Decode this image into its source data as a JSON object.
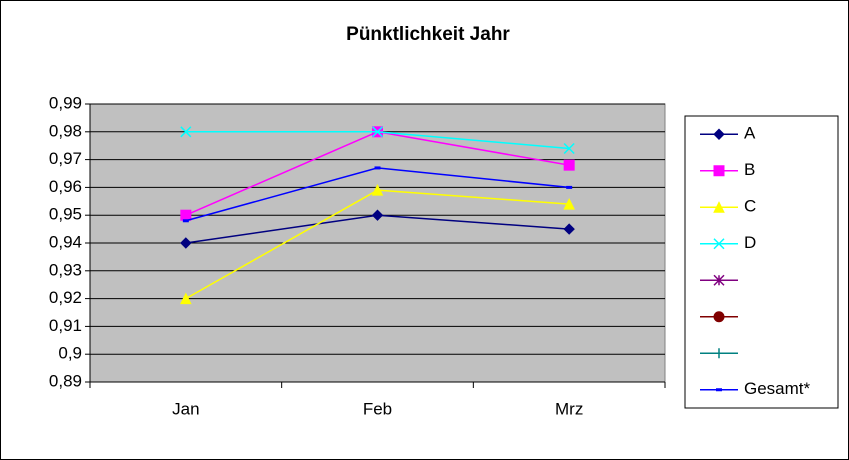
{
  "chart_data": {
    "type": "line",
    "title": "Pünktlichkeit Jahr",
    "categories": [
      "Jan",
      "Feb",
      "Mrz"
    ],
    "series": [
      {
        "name": "A",
        "color": "#000080",
        "marker": "diamond",
        "values": [
          0.94,
          0.95,
          0.945
        ]
      },
      {
        "name": "B",
        "color": "#FF00FF",
        "marker": "square",
        "values": [
          0.95,
          0.98,
          0.968
        ]
      },
      {
        "name": "C",
        "color": "#FFFF00",
        "marker": "triangle",
        "values": [
          0.92,
          0.959,
          0.954
        ]
      },
      {
        "name": "D",
        "color": "#00FFFF",
        "marker": "x",
        "values": [
          0.98,
          0.98,
          0.974
        ]
      },
      {
        "name": null,
        "color": "#800080",
        "marker": "asterisk",
        "values": [
          null,
          null,
          null
        ]
      },
      {
        "name": null,
        "color": "#800000",
        "marker": "circle",
        "values": [
          null,
          null,
          null
        ]
      },
      {
        "name": null,
        "color": "#008080",
        "marker": "plus",
        "values": [
          null,
          null,
          null
        ]
      },
      {
        "name": "Gesamt*",
        "color": "#0000FF",
        "marker": "dash",
        "values": [
          0.948,
          0.967,
          0.96
        ]
      }
    ],
    "ylim": [
      0.89,
      0.99
    ],
    "yticks": [
      {
        "value": 0.89,
        "label": "0,89"
      },
      {
        "value": 0.9,
        "label": "0,9"
      },
      {
        "value": 0.91,
        "label": "0,91"
      },
      {
        "value": 0.92,
        "label": "0,92"
      },
      {
        "value": 0.93,
        "label": "0,93"
      },
      {
        "value": 0.94,
        "label": "0,94"
      },
      {
        "value": 0.95,
        "label": "0,95"
      },
      {
        "value": 0.96,
        "label": "0,96"
      },
      {
        "value": 0.97,
        "label": "0,97"
      },
      {
        "value": 0.98,
        "label": "0,98"
      },
      {
        "value": 0.99,
        "label": "0,99"
      }
    ],
    "grid": true,
    "legend": "right"
  }
}
